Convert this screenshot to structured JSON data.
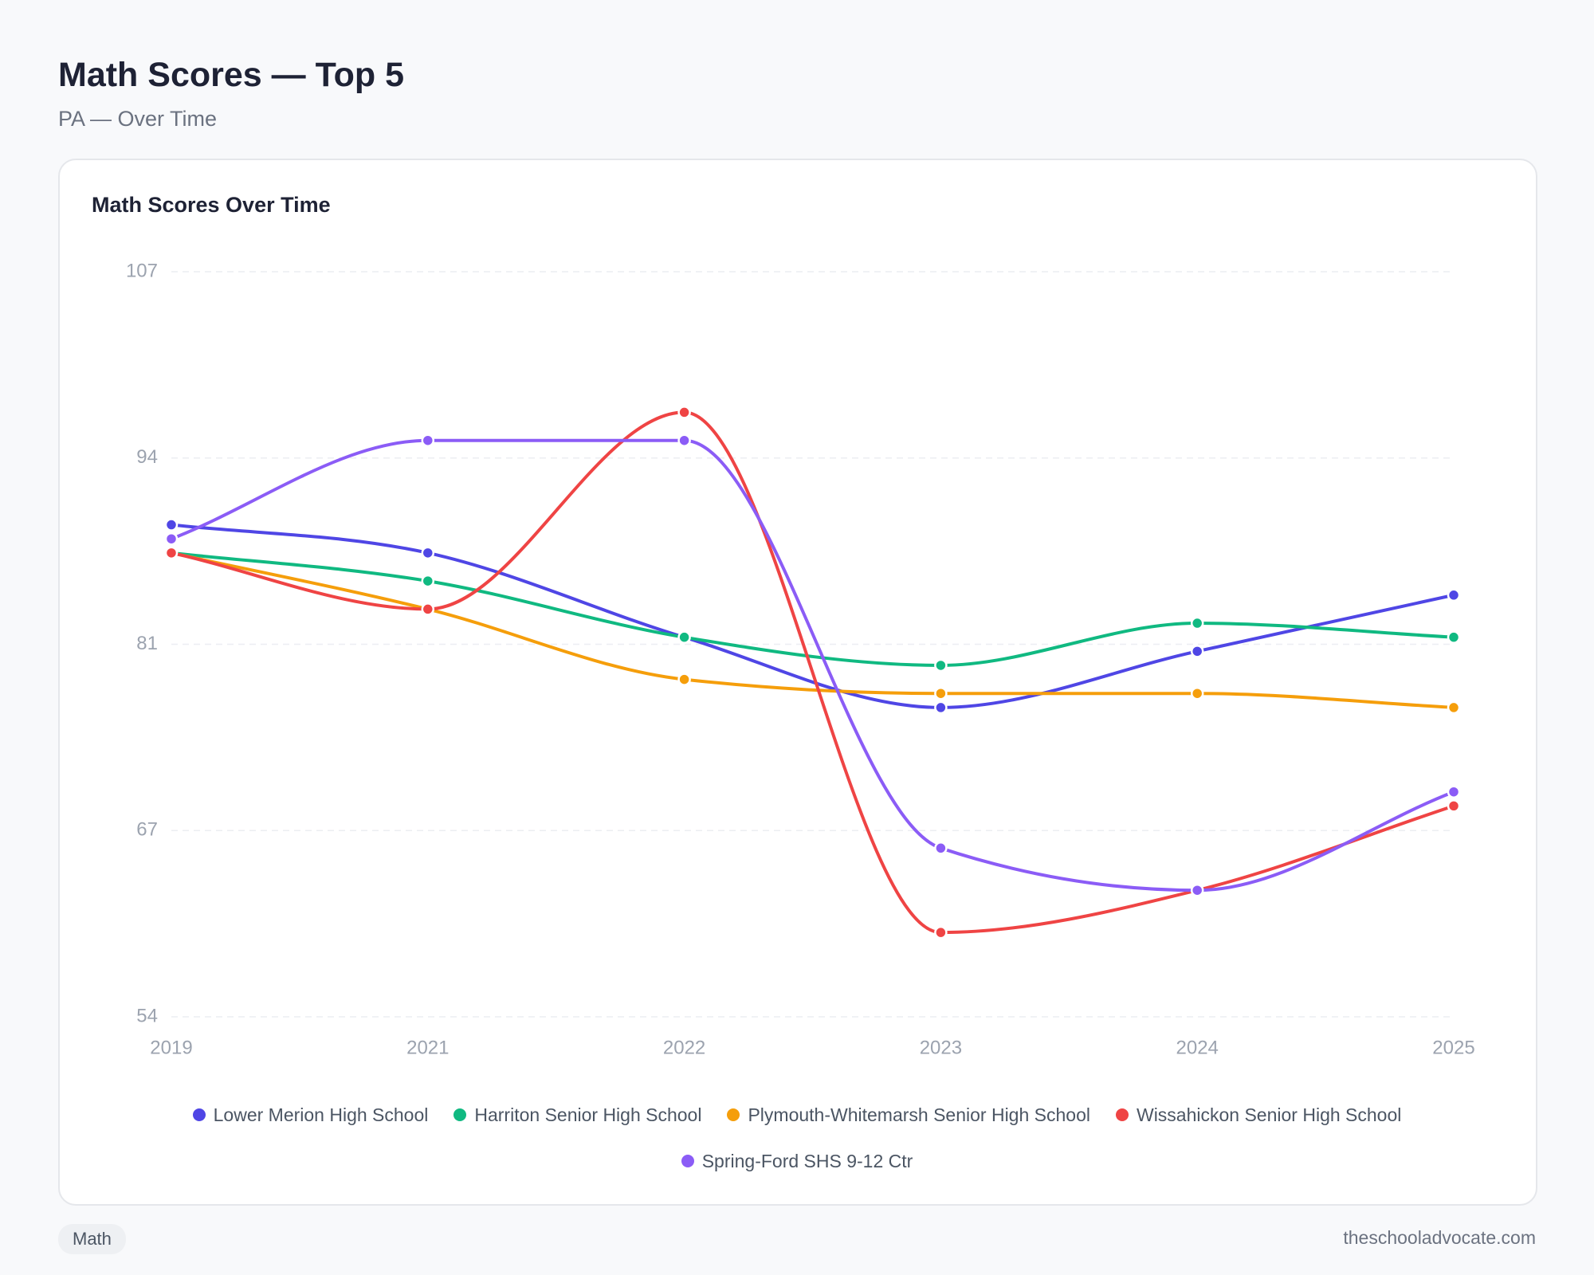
{
  "header": {
    "title": "Math Scores — Top 5",
    "subtitle": "PA — Over Time"
  },
  "chart_data": {
    "type": "line",
    "title": "Math Scores Over Time",
    "categories": [
      "2019",
      "2021",
      "2022",
      "2023",
      "2024",
      "2025"
    ],
    "series": [
      {
        "name": "Lower Merion High School",
        "color": "#4f46e5",
        "values": [
          89,
          87,
          81,
          76,
          80,
          84
        ]
      },
      {
        "name": "Harriton Senior High School",
        "color": "#10b981",
        "values": [
          87,
          85,
          81,
          79,
          82,
          81
        ]
      },
      {
        "name": "Plymouth-Whitemarsh Senior High School",
        "color": "#f59e0b",
        "values": [
          87,
          83,
          78,
          77,
          77,
          76
        ]
      },
      {
        "name": "Wissahickon Senior High School",
        "color": "#ef4444",
        "values": [
          87,
          83,
          97,
          60,
          63,
          69
        ]
      },
      {
        "name": "Spring-Ford SHS 9-12 Ctr",
        "color": "#8b5cf6",
        "values": [
          88,
          95,
          95,
          66,
          63,
          70
        ]
      }
    ],
    "ylim": [
      54,
      107
    ],
    "yticks": [
      54,
      {
        "value": 67.25,
        "label": "67"
      },
      {
        "value": 80.5,
        "label": "81"
      },
      {
        "value": 93.75,
        "label": "94"
      },
      107
    ],
    "grid": true,
    "legend": "bottom"
  },
  "footer": {
    "tag": "Math",
    "source": "theschooladvocate.com"
  }
}
